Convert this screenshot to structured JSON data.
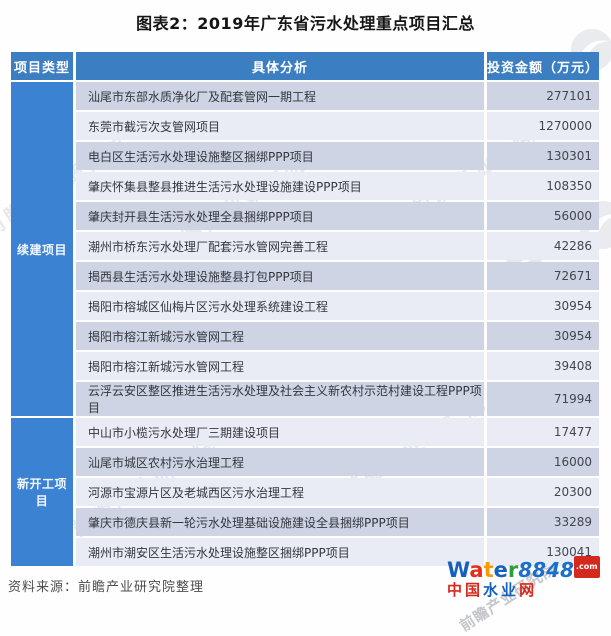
{
  "chart_data": {
    "type": "table",
    "title": "图表2：2019年广东省污水处理重点项目汇总",
    "columns": [
      "项目类型",
      "具体分析",
      "投资金额（万元）"
    ],
    "groups": [
      {
        "category": "续建项目",
        "rows": [
          {
            "project": "汕尾市东部水质净化厂及配套管网一期工程",
            "amount": "277101"
          },
          {
            "project": "东莞市截污次支管网项目",
            "amount": "1270000"
          },
          {
            "project": "电白区生活污水处理设施整区捆绑PPP项目",
            "amount": "130301"
          },
          {
            "project": "肇庆怀集县整县推进生活污水处理设施建设PPP项目",
            "amount": "108350"
          },
          {
            "project": "肇庆封开县生活污水处理全县捆绑PPP项目",
            "amount": "56000"
          },
          {
            "project": "潮州市桥东污水处理厂配套污水管网完善工程",
            "amount": "42286"
          },
          {
            "project": "揭西县生活污水处理设施整县打包PPP项目",
            "amount": "72671"
          },
          {
            "project": "揭阳市榕城区仙梅片区污水处理系统建设工程",
            "amount": "30954"
          },
          {
            "project": "揭阳市榕江新城污水管网工程",
            "amount": "30954"
          },
          {
            "project": "揭阳市榕江新城污水管网工程",
            "amount": "39408"
          },
          {
            "project": "云浮云安区整区推进生活污水处理及社会主义新农村示范村建设工程PPP项目",
            "amount": "71994"
          }
        ]
      },
      {
        "category": "新开工项目",
        "rows": [
          {
            "project": "中山市小榄污水处理厂三期建设项目",
            "amount": "17477"
          },
          {
            "project": "汕尾市城区农村污水治理工程",
            "amount": "16000"
          },
          {
            "project": "河源市宝源片区及老城西区污水治理工程",
            "amount": "20300"
          },
          {
            "project": "肇庆市德庆县新一轮污水处理基础设施建设全县捆绑PPP项目",
            "amount": "33289"
          },
          {
            "project": "潮州市潮安区生活污水处理设施整区捆绑PPP项目",
            "amount": "130041"
          }
        ]
      }
    ],
    "layout": {
      "row_alternating_colors": true,
      "category_column_merged": true
    }
  },
  "source_note": "资料来源：前瞻产业研究院整理",
  "watermark": {
    "text": "前瞻产业研究院",
    "logo_icon": "qianzhan-swoosh-logo"
  },
  "site_logo": {
    "brand_letters": [
      {
        "ch": "W",
        "color": "#1660c0"
      },
      {
        "ch": "a",
        "color": "#e03020"
      },
      {
        "ch": "t",
        "color": "#f59a00"
      },
      {
        "ch": "e",
        "color": "#1660c0"
      },
      {
        "ch": "r",
        "color": "#2e9e3a"
      }
    ],
    "number": "8848",
    "tld": ".com",
    "subtitle_letters": [
      {
        "ch": "中",
        "color": "#d42a1e"
      },
      {
        "ch": "国",
        "color": "#d42a1e"
      },
      {
        "ch": "水",
        "color": "#1660c0"
      },
      {
        "ch": "业",
        "color": "#1660c0"
      },
      {
        "ch": "网",
        "color": "#d42a1e"
      }
    ]
  },
  "colors": {
    "header_bg": "#3b7ec2",
    "category_bg": "#3c82d2",
    "row_dark": "#ced4e3",
    "row_light": "#e9ecf4"
  }
}
